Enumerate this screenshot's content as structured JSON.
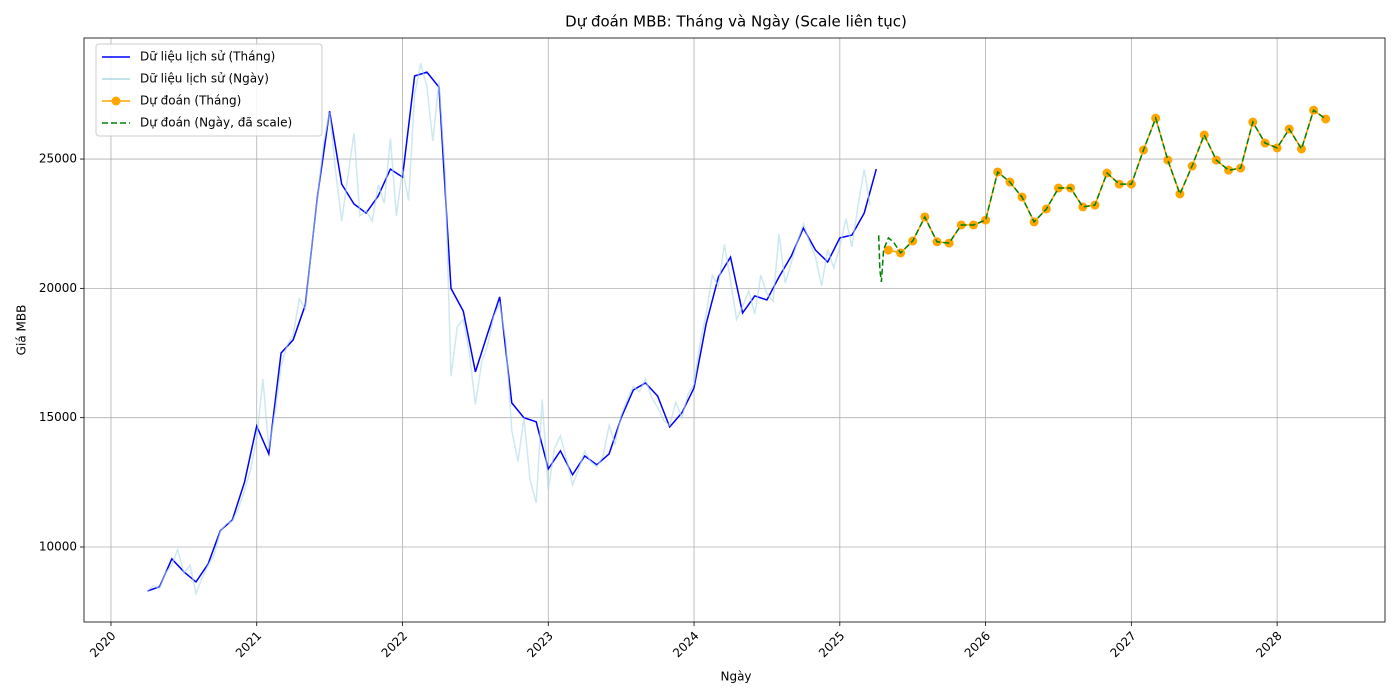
{
  "chart_data": {
    "type": "line",
    "title": "Dự đoán MBB: Tháng và Ngày (Scale liên tục)",
    "xlabel": "Ngày",
    "ylabel": "Giá MBB",
    "xlim": [
      2019.815,
      2028.74
    ],
    "ylim": [
      7100,
      29680
    ],
    "xticks": [
      2020,
      2021,
      2022,
      2023,
      2024,
      2025,
      2026,
      2027,
      2028
    ],
    "yticks": [
      10000,
      15000,
      20000,
      25000
    ],
    "grid": true,
    "legend": "upper left",
    "series": [
      {
        "name": "Dữ liệu lịch sử (Tháng)",
        "color": "blue",
        "linestyle": "solid",
        "x": [
          2020.25,
          2020.333,
          2020.417,
          2020.5,
          2020.583,
          2020.667,
          2020.75,
          2020.833,
          2020.917,
          2021.0,
          2021.083,
          2021.167,
          2021.25,
          2021.333,
          2021.417,
          2021.5,
          2021.583,
          2021.667,
          2021.75,
          2021.833,
          2021.917,
          2022.0,
          2022.083,
          2022.167,
          2022.25,
          2022.333,
          2022.417,
          2022.5,
          2022.583,
          2022.667,
          2022.75,
          2022.833,
          2022.917,
          2023.0,
          2023.083,
          2023.167,
          2023.25,
          2023.333,
          2023.417,
          2023.5,
          2023.583,
          2023.667,
          2023.75,
          2023.833,
          2023.917,
          2024.0,
          2024.083,
          2024.167,
          2024.25,
          2024.333,
          2024.417,
          2024.5,
          2024.583,
          2024.667,
          2024.75,
          2024.833,
          2024.917,
          2025.0,
          2025.083,
          2025.167,
          2025.25
        ],
        "values": [
          8300,
          8460,
          9540,
          9040,
          8650,
          9350,
          10630,
          11050,
          12520,
          14680,
          13600,
          17500,
          18010,
          19360,
          23570,
          26850,
          24030,
          23260,
          22910,
          23570,
          24610,
          24300,
          28210,
          28360,
          27780,
          20000,
          19120,
          16770,
          18240,
          19670,
          15570,
          15000,
          14840,
          13020,
          13720,
          12790,
          13520,
          13180,
          13600,
          15000,
          16070,
          16340,
          15840,
          14640,
          15190,
          16150,
          18620,
          20440,
          21210,
          19050,
          19710,
          19550,
          20440,
          21250,
          22330,
          21480,
          21020,
          21950,
          22060,
          22910,
          24610
        ]
      },
      {
        "name": "Dữ liệu lịch sử (Ngày)",
        "color": "lightblue",
        "linestyle": "solid",
        "x": [
          2020.25,
          2020.292,
          2020.333,
          2020.375,
          2020.417,
          2020.458,
          2020.5,
          2020.542,
          2020.583,
          2020.625,
          2020.667,
          2020.708,
          2020.75,
          2020.792,
          2020.833,
          2020.875,
          2020.917,
          2020.958,
          2021.0,
          2021.042,
          2021.083,
          2021.125,
          2021.167,
          2021.208,
          2021.25,
          2021.292,
          2021.333,
          2021.375,
          2021.417,
          2021.458,
          2021.5,
          2021.542,
          2021.583,
          2021.625,
          2021.667,
          2021.708,
          2021.75,
          2021.792,
          2021.833,
          2021.875,
          2021.917,
          2021.958,
          2022.0,
          2022.042,
          2022.083,
          2022.125,
          2022.167,
          2022.208,
          2022.25,
          2022.292,
          2022.333,
          2022.375,
          2022.417,
          2022.458,
          2022.5,
          2022.542,
          2022.583,
          2022.625,
          2022.667,
          2022.708,
          2022.75,
          2022.792,
          2022.833,
          2022.875,
          2022.917,
          2022.958,
          2023.0,
          2023.042,
          2023.083,
          2023.125,
          2023.167,
          2023.208,
          2023.25,
          2023.292,
          2023.333,
          2023.375,
          2023.417,
          2023.458,
          2023.5,
          2023.542,
          2023.583,
          2023.625,
          2023.667,
          2023.708,
          2023.75,
          2023.792,
          2023.833,
          2023.875,
          2023.917,
          2023.958,
          2024.0,
          2024.042,
          2024.083,
          2024.125,
          2024.167,
          2024.208,
          2024.25,
          2024.292,
          2024.333,
          2024.375,
          2024.417,
          2024.458,
          2024.5,
          2024.542,
          2024.583,
          2024.625,
          2024.667,
          2024.708,
          2024.75,
          2024.792,
          2024.833,
          2024.875,
          2024.917,
          2024.958,
          2025.0,
          2025.042,
          2025.083,
          2025.125,
          2025.167,
          2025.208
        ],
        "values": [
          8300,
          8500,
          8400,
          9000,
          9300,
          9900,
          9000,
          9300,
          8200,
          8800,
          9300,
          9700,
          10600,
          10900,
          11000,
          11500,
          12200,
          13000,
          14200,
          16500,
          13800,
          15200,
          17000,
          17800,
          18200,
          19600,
          19200,
          21500,
          23500,
          25600,
          26800,
          24500,
          22600,
          24300,
          26000,
          22800,
          23000,
          22600,
          24000,
          23300,
          25800,
          22800,
          24600,
          23400,
          27500,
          28700,
          27800,
          25700,
          28000,
          24500,
          16600,
          18500,
          18800,
          17500,
          15500,
          17100,
          17800,
          18900,
          19400,
          18000,
          14500,
          13300,
          15000,
          12600,
          11700,
          15700,
          12200,
          13800,
          14300,
          13400,
          12400,
          13000,
          13700,
          13300,
          13100,
          13500,
          14700,
          14000,
          15100,
          15700,
          16200,
          16000,
          16500,
          15800,
          15400,
          14900,
          14700,
          15600,
          15000,
          15900,
          16300,
          17900,
          19000,
          20500,
          20100,
          21700,
          20300,
          18800,
          19300,
          19900,
          19000,
          20500,
          19800,
          19500,
          22100,
          20200,
          21000,
          21800,
          22500,
          21800,
          21200,
          20100,
          21500,
          20800,
          21600,
          22700,
          21600,
          23200,
          24600,
          23200
        ]
      },
      {
        "name": "Dự đoán (Tháng)",
        "color": "orange",
        "linestyle": "solid",
        "marker": "o",
        "x": [
          2025.333,
          2025.417,
          2025.5,
          2025.583,
          2025.667,
          2025.75,
          2025.833,
          2025.917,
          2026.0,
          2026.083,
          2026.167,
          2026.25,
          2026.333,
          2026.417,
          2026.5,
          2026.583,
          2026.667,
          2026.75,
          2026.833,
          2026.917,
          2027.0,
          2027.083,
          2027.167,
          2027.25,
          2027.333,
          2027.417,
          2027.5,
          2027.583,
          2027.667,
          2027.75,
          2027.833,
          2027.917,
          2028.0,
          2028.083,
          2028.167,
          2028.25,
          2028.333
        ],
        "values": [
          21480,
          21370,
          21830,
          22760,
          21800,
          21750,
          22450,
          22450,
          22640,
          24500,
          24110,
          23530,
          22570,
          23070,
          23880,
          23880,
          23150,
          23220,
          24460,
          24030,
          24030,
          25350,
          26580,
          24960,
          23650,
          24730,
          25930,
          24960,
          24570,
          24650,
          26430,
          25620,
          25430,
          26160,
          25390,
          26890,
          26550
        ]
      },
      {
        "name": "Dự đoán (Ngày, đã scale)",
        "color": "green",
        "linestyle": "dashed",
        "x": [
          2025.267,
          2025.275,
          2025.285,
          2025.3,
          2025.333,
          2025.367,
          2025.417,
          2025.5,
          2025.583,
          2025.667,
          2025.75,
          2025.833,
          2025.917,
          2026.0,
          2026.083,
          2026.167,
          2026.25,
          2026.333,
          2026.417,
          2026.5,
          2026.583,
          2026.667,
          2026.75,
          2026.833,
          2026.917,
          2027.0,
          2027.083,
          2027.167,
          2027.25,
          2027.333,
          2027.417,
          2027.5,
          2027.583,
          2027.667,
          2027.75,
          2027.833,
          2027.917,
          2028.0,
          2028.083,
          2028.167,
          2028.25,
          2028.333
        ],
        "values": [
          22050,
          20700,
          20250,
          21500,
          21950,
          21800,
          21370,
          21830,
          22760,
          21800,
          21750,
          22450,
          22450,
          22640,
          24500,
          24110,
          23530,
          22570,
          23070,
          23880,
          23880,
          23150,
          23220,
          24460,
          24030,
          24030,
          25350,
          26580,
          24960,
          23650,
          24730,
          25930,
          24960,
          24570,
          24650,
          26430,
          25620,
          25430,
          26160,
          25390,
          26890,
          26550
        ]
      }
    ]
  }
}
